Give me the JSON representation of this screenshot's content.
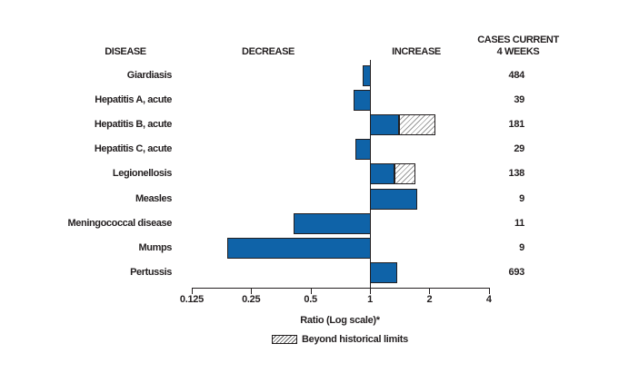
{
  "chart_data": {
    "type": "bar",
    "orientation": "horizontal",
    "scale": "log2",
    "title": "",
    "xlabel": "Ratio (Log scale)*",
    "x_ticks": [
      0.125,
      0.25,
      0.5,
      1,
      2,
      4
    ],
    "x_tick_labels": [
      "0.125",
      "0.25",
      "0.5",
      "1",
      "2",
      "4"
    ],
    "xlim": [
      0.125,
      4
    ],
    "baseline": 1,
    "headers": {
      "disease": "DISEASE",
      "decrease": "DECREASE",
      "increase": "INCREASE",
      "cases_line1": "CASES CURRENT",
      "cases_line2": "4 WEEKS"
    },
    "legend": {
      "beyond_label": "Beyond historical limits",
      "position": "bottom"
    },
    "rows": [
      {
        "disease": "Giardiasis",
        "ratio": 0.92,
        "beyond": null,
        "cases": "484"
      },
      {
        "disease": "Hepatitis A, acute",
        "ratio": 0.83,
        "beyond": null,
        "cases": "39"
      },
      {
        "disease": "Hepatitis B, acute",
        "ratio": 1.4,
        "beyond": 2.15,
        "cases": "181"
      },
      {
        "disease": "Hepatitis C, acute",
        "ratio": 0.84,
        "beyond": null,
        "cases": "29"
      },
      {
        "disease": "Legionellosis",
        "ratio": 1.33,
        "beyond": 1.7,
        "cases": "138"
      },
      {
        "disease": "Measles",
        "ratio": 1.73,
        "beyond": null,
        "cases": "9"
      },
      {
        "disease": "Meningococcal disease",
        "ratio": 0.41,
        "beyond": null,
        "cases": "11"
      },
      {
        "disease": "Mumps",
        "ratio": 0.19,
        "beyond": null,
        "cases": "9"
      },
      {
        "disease": "Pertussis",
        "ratio": 1.37,
        "beyond": null,
        "cases": "693"
      }
    ],
    "colors": {
      "bar_fill": "#0f63a8",
      "outline": "#231f20",
      "hatch_line": "#999999",
      "background": "#ffffff"
    }
  }
}
